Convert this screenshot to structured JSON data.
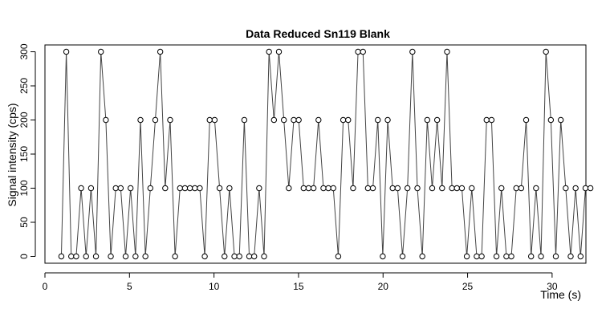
{
  "chart_data": {
    "type": "line",
    "title": "Data Reduced Sn119 Blank",
    "xlabel": "Time (s)",
    "ylabel": "Signal intensity (cps)",
    "xlim": [
      0,
      32
    ],
    "ylim": [
      -10,
      310
    ],
    "x_ticks": [
      0,
      5,
      10,
      15,
      20,
      25,
      30
    ],
    "y_ticks": [
      0,
      50,
      100,
      150,
      200,
      250,
      300
    ],
    "grid": false,
    "legend": "none",
    "x_start": 0.97,
    "x_step": 0.2925,
    "values": [
      0,
      300,
      0,
      0,
      100,
      0,
      100,
      0,
      300,
      200,
      0,
      100,
      100,
      0,
      100,
      0,
      200,
      0,
      100,
      200,
      300,
      100,
      200,
      0,
      100,
      100,
      100,
      100,
      100,
      0,
      200,
      200,
      100,
      0,
      100,
      0,
      0,
      200,
      0,
      0,
      100,
      0,
      300,
      200,
      300,
      200,
      100,
      200,
      200,
      100,
      100,
      100,
      200,
      100,
      100,
      100,
      0,
      200,
      200,
      100,
      300,
      300,
      100,
      100,
      200,
      0,
      200,
      100,
      100,
      0,
      100,
      300,
      100,
      0,
      200,
      100,
      200,
      100,
      300,
      100,
      100,
      100,
      0,
      100,
      0,
      0,
      200,
      200,
      0,
      100,
      0,
      0,
      100,
      100,
      200,
      0,
      100,
      0,
      300,
      200,
      0,
      200,
      100,
      0,
      100,
      0,
      100,
      100
    ]
  }
}
